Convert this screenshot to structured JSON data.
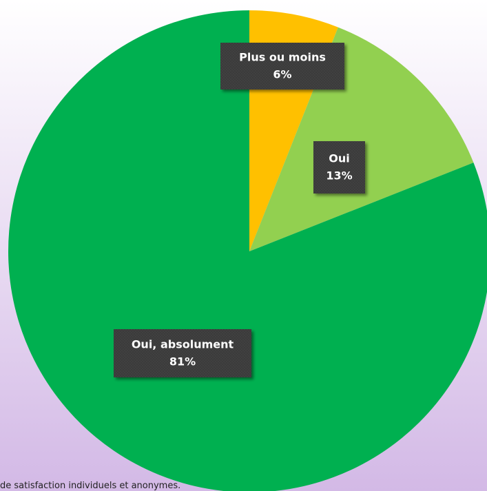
{
  "chart_data": {
    "type": "pie",
    "categories": [
      "Plus ou moins",
      "Oui",
      "Oui, absolument"
    ],
    "values": [
      6,
      13,
      81
    ],
    "value_labels": [
      "6%",
      "13%",
      "81%"
    ],
    "colors": [
      "#ffc000",
      "#92d050",
      "#00b050"
    ],
    "note": "de satisfaction individuels et anonymes."
  }
}
